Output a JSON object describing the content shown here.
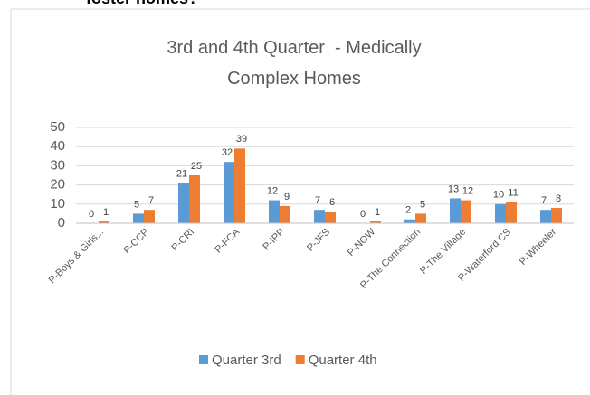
{
  "header_text": "foster homes?",
  "chart_data": {
    "type": "bar",
    "title": "3rd and 4th Quarter  - Medically Complex Homes",
    "categories": [
      "P-Boys & Girls...",
      "P-CCP",
      "P-CRI",
      "P-FCA",
      "P-IPP",
      "P-JFS",
      "P-NOW",
      "P-The Connection",
      "P-The Village",
      "P-Waterford CS",
      "P-Wheeler"
    ],
    "series": [
      {
        "name": "Quarter 3rd",
        "color": "#5b9bd5",
        "values": [
          0,
          5,
          21,
          32,
          12,
          7,
          0,
          2,
          13,
          10,
          7
        ]
      },
      {
        "name": "Quarter 4th",
        "color": "#ed7d31",
        "values": [
          1,
          7,
          25,
          39,
          9,
          6,
          1,
          5,
          12,
          11,
          8
        ]
      }
    ],
    "ylim": [
      0,
      50
    ],
    "yticks": [
      0,
      10,
      20,
      30,
      40,
      50
    ],
    "grid": true,
    "legend": "bottom"
  }
}
